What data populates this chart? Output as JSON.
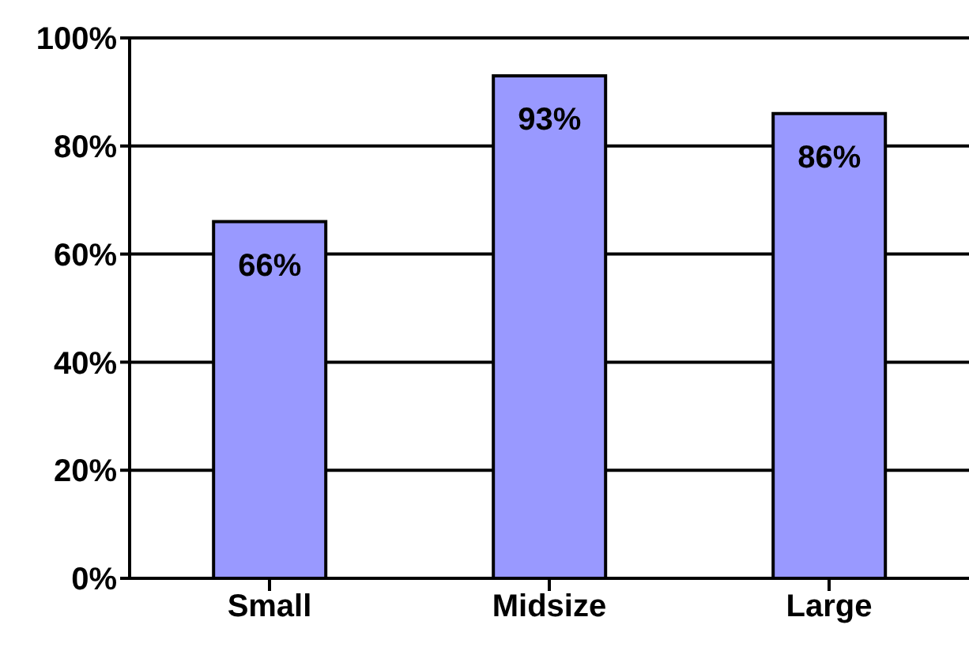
{
  "chart_data": {
    "type": "bar",
    "categories": [
      "Small",
      "Midsize",
      "Large"
    ],
    "values": [
      66,
      93,
      86
    ],
    "value_labels": [
      "66%",
      "93%",
      "86%"
    ],
    "color": "#9999ff",
    "ylim": [
      0,
      100
    ],
    "yticks": [
      {
        "value": 0,
        "label": "0%"
      },
      {
        "value": 20,
        "label": "20%"
      },
      {
        "value": 40,
        "label": "40%"
      },
      {
        "value": 60,
        "label": "60%"
      },
      {
        "value": 80,
        "label": "80%"
      },
      {
        "value": 100,
        "label": "100%"
      }
    ],
    "grid": "y"
  }
}
